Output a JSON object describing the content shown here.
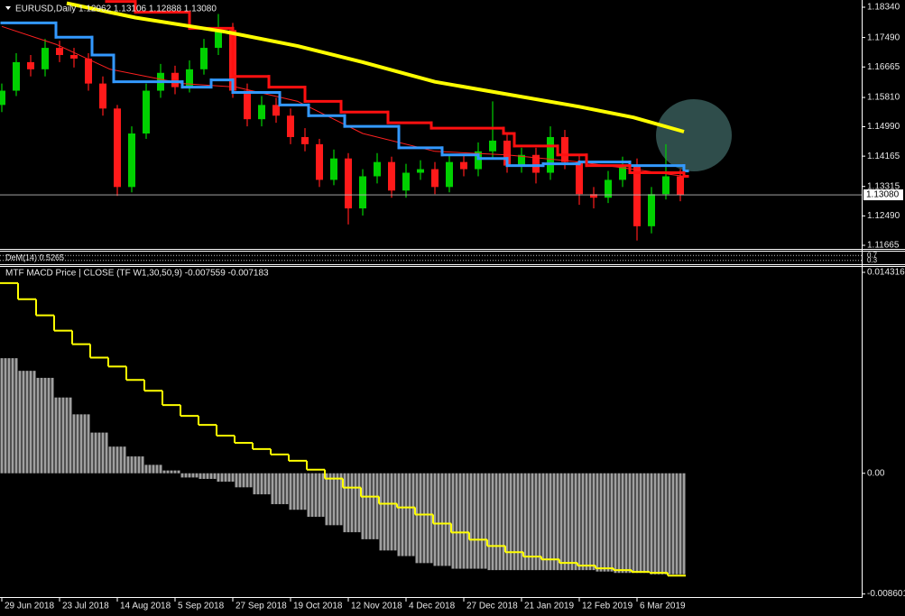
{
  "chart_data": [
    {
      "type": "candlestick",
      "title": "EURUSD,Daily 1.12962 1.13106 1.12888 1.13080",
      "xlim": [
        -0.5,
        238.25
      ],
      "ylim": [
        1.11564,
        1.18542
      ],
      "yticks": [
        {
          "value": 1.1834,
          "label": "1.18340"
        },
        {
          "value": 1.1749,
          "label": "1.17490"
        },
        {
          "value": 1.16665,
          "label": "1.16665"
        },
        {
          "value": 1.1581,
          "label": "1.15810"
        },
        {
          "value": 1.1499,
          "label": "1.14990"
        },
        {
          "value": 1.14165,
          "label": "1.14165"
        },
        {
          "value": 1.13315,
          "label": "1.13315"
        },
        {
          "value": 1.1249,
          "label": "1.12490"
        },
        {
          "value": 1.11665,
          "label": "1.11665"
        }
      ],
      "last_price": {
        "value": 1.1308,
        "label": "1.13080"
      },
      "up_color": "#00d000",
      "down_color": "#ff1a1a",
      "x": [
        0,
        4,
        8,
        12,
        16,
        20,
        24,
        28,
        32,
        36,
        40,
        44,
        48,
        52,
        56,
        60,
        64,
        68,
        72,
        76,
        80,
        84,
        88,
        92,
        96,
        100,
        104,
        108,
        112,
        116,
        120,
        124,
        128,
        132,
        136,
        140,
        144,
        148,
        152,
        156,
        160,
        164,
        168,
        172,
        176,
        180,
        184,
        188
      ],
      "open": [
        1.156,
        1.16,
        1.168,
        1.166,
        1.172,
        1.17,
        1.169,
        1.162,
        1.155,
        1.133,
        1.148,
        1.16,
        1.165,
        1.161,
        1.166,
        1.172,
        1.177,
        1.16,
        1.152,
        1.156,
        1.153,
        1.147,
        1.145,
        1.135,
        1.141,
        1.127,
        1.136,
        1.14,
        1.132,
        1.137,
        1.138,
        1.133,
        1.14,
        1.138,
        1.143,
        1.146,
        1.139,
        1.142,
        1.137,
        1.147,
        1.14,
        1.131,
        1.13,
        1.135,
        1.139,
        1.122,
        1.131,
        1.136
      ],
      "high": [
        1.162,
        1.1705,
        1.17,
        1.1745,
        1.174,
        1.172,
        1.1705,
        1.164,
        1.156,
        1.15,
        1.162,
        1.1675,
        1.167,
        1.1685,
        1.1745,
        1.1815,
        1.179,
        1.162,
        1.1585,
        1.158,
        1.155,
        1.1495,
        1.1465,
        1.1435,
        1.1425,
        1.138,
        1.1425,
        1.1415,
        1.1395,
        1.1405,
        1.14,
        1.142,
        1.142,
        1.1455,
        1.157,
        1.148,
        1.144,
        1.144,
        1.15,
        1.149,
        1.142,
        1.133,
        1.1375,
        1.1415,
        1.141,
        1.133,
        1.145,
        1.138
      ],
      "low": [
        1.154,
        1.1585,
        1.164,
        1.164,
        1.168,
        1.1665,
        1.16,
        1.153,
        1.1305,
        1.1315,
        1.1465,
        1.158,
        1.159,
        1.1595,
        1.1645,
        1.17,
        1.158,
        1.15,
        1.15,
        1.151,
        1.145,
        1.143,
        1.133,
        1.1335,
        1.1225,
        1.125,
        1.134,
        1.13,
        1.13,
        1.135,
        1.131,
        1.1315,
        1.136,
        1.136,
        1.141,
        1.137,
        1.137,
        1.134,
        1.135,
        1.138,
        1.128,
        1.127,
        1.1285,
        1.133,
        1.118,
        1.12,
        1.1295,
        1.129
      ],
      "close": [
        1.16,
        1.168,
        1.166,
        1.172,
        1.17,
        1.169,
        1.162,
        1.155,
        1.133,
        1.148,
        1.16,
        1.165,
        1.161,
        1.166,
        1.172,
        1.177,
        1.16,
        1.152,
        1.156,
        1.153,
        1.147,
        1.145,
        1.135,
        1.141,
        1.127,
        1.136,
        1.14,
        1.132,
        1.137,
        1.138,
        1.133,
        1.14,
        1.138,
        1.143,
        1.146,
        1.139,
        1.142,
        1.137,
        1.147,
        1.14,
        1.131,
        1.13,
        1.135,
        1.139,
        1.122,
        1.131,
        1.136,
        1.1308
      ],
      "series": [
        {
          "color": "#ff2020",
          "width": 1,
          "step": false,
          "x": [
            0,
            15,
            30,
            50,
            65,
            82,
            100,
            120,
            140,
            160,
            175,
            189
          ],
          "values": [
            1.178,
            1.173,
            1.166,
            1.162,
            1.161,
            1.157,
            1.148,
            1.143,
            1.142,
            1.14,
            1.138,
            1.136
          ]
        },
        {
          "color": "#3399ff",
          "width": 3,
          "step": true,
          "x": [
            0,
            15,
            25,
            31,
            50,
            58,
            64,
            77,
            85,
            95,
            110,
            122,
            132,
            140,
            150,
            160,
            174,
            189
          ],
          "values": [
            1.179,
            1.175,
            1.17,
            1.1625,
            1.161,
            1.163,
            1.1595,
            1.156,
            1.153,
            1.15,
            1.144,
            1.142,
            1.141,
            1.139,
            1.1395,
            1.14,
            1.139,
            1.1375
          ]
        },
        {
          "color": "#ff1010",
          "width": 3,
          "step": true,
          "x": [
            29,
            37,
            52,
            64,
            74,
            84,
            94,
            107,
            119,
            139,
            142,
            154,
            162,
            174,
            189
          ],
          "values": [
            1.185,
            1.182,
            1.1775,
            1.164,
            1.161,
            1.157,
            1.154,
            1.151,
            1.1495,
            1.148,
            1.1445,
            1.142,
            1.139,
            1.137,
            1.136
          ]
        },
        {
          "color": "#ffff00",
          "width": 4,
          "step": false,
          "x": [
            18,
            37,
            62,
            82,
            100,
            120,
            140,
            160,
            175,
            189
          ],
          "values": [
            1.1845,
            1.1805,
            1.1765,
            1.1725,
            1.168,
            1.1625,
            1.159,
            1.1555,
            1.1525,
            1.1485
          ]
        }
      ]
    },
    {
      "type": "levels",
      "title": "DeM(14) 0.5265",
      "ylim": [
        0,
        1
      ],
      "yticks": [
        0.3,
        0.7
      ]
    },
    {
      "type": "macd",
      "title": "MTF MACD Price | CLOSE  (TF W1,30,50,9) -0.007559 -0.007183",
      "xlim": [
        -0.5,
        238.25
      ],
      "ylim": [
        -0.00882,
        0.0147
      ],
      "yticks": [
        0.014316,
        {
          "value": 0,
          "label": "0.00"
        },
        -0.008601
      ],
      "xticks": [
        {
          "value": 0,
          "label": "29 Jun 2018"
        },
        {
          "value": 16,
          "label": "23 Jul 2018"
        },
        {
          "value": 32,
          "label": "14 Aug 2018"
        },
        {
          "value": 48,
          "label": "5 Sep 2018"
        },
        {
          "value": 64,
          "label": "27 Sep 2018"
        },
        {
          "value": 80,
          "label": "19 Oct 2018"
        },
        {
          "value": 96,
          "label": "12 Nov 2018"
        },
        {
          "value": 112,
          "label": "4 Dec 2018"
        },
        {
          "value": 128,
          "label": "27 Dec 2018"
        },
        {
          "value": 144,
          "label": "21 Jan 2019"
        },
        {
          "value": 160,
          "label": "12 Feb 2019"
        },
        {
          "value": 176,
          "label": "6 Mar 2019"
        }
      ],
      "x": [
        0,
        5,
        10,
        15,
        20,
        25,
        30,
        35,
        40,
        45,
        50,
        55,
        60,
        65,
        70,
        75,
        80,
        85,
        90,
        95,
        100,
        105,
        110,
        115,
        120,
        125,
        130,
        135,
        140,
        145,
        150,
        155,
        160,
        165,
        170,
        175,
        180,
        185
      ],
      "histogram": {
        "color": "#a0a0a0",
        "values": [
          0.0082,
          0.0073,
          0.0068,
          0.0054,
          0.0042,
          0.0029,
          0.0019,
          0.0012,
          0.0006,
          0.0002,
          -0.0003,
          -0.0004,
          -0.0006,
          -0.001,
          -0.0015,
          -0.0022,
          -0.0026,
          -0.0031,
          -0.0037,
          -0.0042,
          -0.0047,
          -0.0055,
          -0.0059,
          -0.0064,
          -0.0066,
          -0.0068,
          -0.0068,
          -0.0069,
          -0.0069,
          -0.0069,
          -0.0069,
          -0.0069,
          -0.0069,
          -0.007,
          -0.0071,
          -0.0071,
          -0.0072,
          -0.0072
        ]
      },
      "signal": {
        "color": "#ffff00",
        "values": [
          0.01355,
          0.0124,
          0.01125,
          0.01016,
          0.0092,
          0.00824,
          0.00761,
          0.00665,
          0.00588,
          0.00486,
          0.00409,
          0.00345,
          0.00268,
          0.00217,
          0.00173,
          0.00134,
          0.00089,
          0.00026,
          -0.00038,
          -0.00102,
          -0.00166,
          -0.00217,
          -0.00243,
          -0.00294,
          -0.00358,
          -0.00422,
          -0.00473,
          -0.00518,
          -0.00562,
          -0.00594,
          -0.00614,
          -0.00639,
          -0.00658,
          -0.00677,
          -0.0069,
          -0.00703,
          -0.00709,
          -0.00729
        ]
      }
    }
  ]
}
